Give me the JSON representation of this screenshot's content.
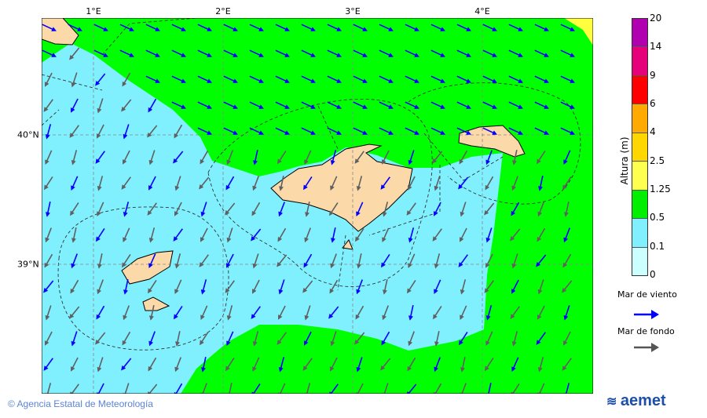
{
  "map": {
    "lon_labels": [
      "1°E",
      "2°E",
      "3°E",
      "4°E"
    ],
    "lat_labels": [
      "40°N",
      "39°N"
    ],
    "colors": {
      "calm": "#80f0ff",
      "moderate": "#00ff00",
      "high": "#ffff40",
      "land": "#fcd9a8",
      "wind_sea_arrow": "#0000ff",
      "swell_arrow": "#606060"
    }
  },
  "legend": {
    "title": "Altura (m)",
    "levels": [
      "20",
      "14",
      "9",
      "6",
      "4",
      "2.5",
      "1.25",
      "0.5",
      "0.1",
      "0"
    ],
    "colors": [
      "#b000b0",
      "#e6007a",
      "#ff0000",
      "#ffaa00",
      "#ffd700",
      "#ffff50",
      "#00ee00",
      "#80f0ff",
      "#ccffff"
    ],
    "wind_sea_label": "Mar de viento",
    "swell_label": "Mar de fondo"
  },
  "footer": {
    "credit": "© Agencia Estatal de Meteorología",
    "logo": "aemet"
  }
}
